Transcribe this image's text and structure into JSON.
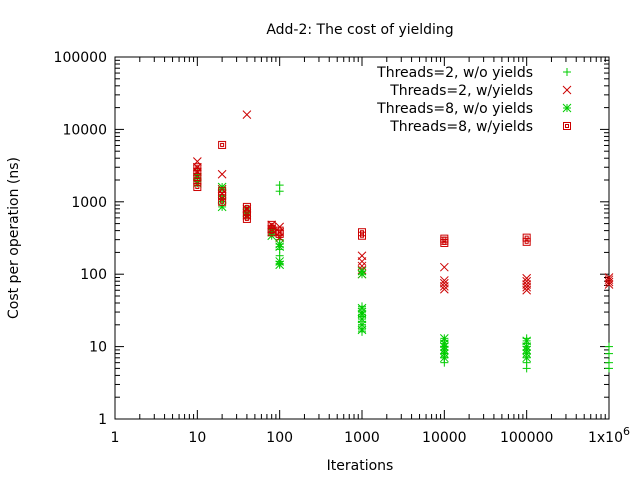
{
  "chart_data": {
    "type": "scatter",
    "title": "Add-2: The cost of yielding",
    "xlabel": "Iterations",
    "ylabel": "Cost per operation (ns)",
    "xscale": "log",
    "yscale": "log",
    "xlim": [
      1,
      1000000
    ],
    "ylim": [
      1,
      100000
    ],
    "xticks": [
      {
        "value": 1,
        "label": "1"
      },
      {
        "value": 10,
        "label": "10"
      },
      {
        "value": 100,
        "label": "100"
      },
      {
        "value": 1000,
        "label": "1000"
      },
      {
        "value": 10000,
        "label": "10000"
      },
      {
        "value": 100000,
        "label": "100000"
      },
      {
        "value": 1000000,
        "label": "1x10",
        "exponent": "6"
      }
    ],
    "yticks": [
      {
        "value": 1,
        "label": "1"
      },
      {
        "value": 10,
        "label": "10"
      },
      {
        "value": 100,
        "label": "100"
      },
      {
        "value": 1000,
        "label": "1000"
      },
      {
        "value": 10000,
        "label": "10000"
      },
      {
        "value": 100000,
        "label": "100000"
      }
    ],
    "grid": false,
    "legend_position": "top-right",
    "series": [
      {
        "name": "Threads=2, w/o yields",
        "marker": "plus",
        "color": "#00cc00",
        "points": [
          [
            10,
            2700
          ],
          [
            10,
            2400
          ],
          [
            10,
            2100
          ],
          [
            10,
            1900
          ],
          [
            20,
            1500
          ],
          [
            20,
            1200
          ],
          [
            20,
            1000
          ],
          [
            40,
            800
          ],
          [
            40,
            650
          ],
          [
            80,
            420
          ],
          [
            80,
            380
          ],
          [
            100,
            1700
          ],
          [
            100,
            1400
          ],
          [
            100,
            300
          ],
          [
            100,
            220
          ],
          [
            100,
            180
          ],
          [
            100,
            140
          ],
          [
            1000,
            36
          ],
          [
            1000,
            30
          ],
          [
            1000,
            26
          ],
          [
            1000,
            22
          ],
          [
            1000,
            20
          ],
          [
            1000,
            18
          ],
          [
            1000,
            16
          ],
          [
            10000,
            12
          ],
          [
            10000,
            10
          ],
          [
            10000,
            9
          ],
          [
            10000,
            8
          ],
          [
            10000,
            7
          ],
          [
            10000,
            6
          ],
          [
            100000,
            13
          ],
          [
            100000,
            11
          ],
          [
            100000,
            9
          ],
          [
            100000,
            6
          ],
          [
            100000,
            5
          ],
          [
            1000000,
            10
          ],
          [
            1000000,
            8
          ],
          [
            1000000,
            6
          ],
          [
            1000000,
            5
          ]
        ]
      },
      {
        "name": "Threads=2, w/yields",
        "marker": "cross",
        "color": "#cc0000",
        "points": [
          [
            10,
            3600
          ],
          [
            10,
            3000
          ],
          [
            10,
            2600
          ],
          [
            20,
            2400
          ],
          [
            20,
            1500
          ],
          [
            20,
            1300
          ],
          [
            40,
            16000
          ],
          [
            40,
            800
          ],
          [
            40,
            650
          ],
          [
            80,
            480
          ],
          [
            80,
            420
          ],
          [
            100,
            450
          ],
          [
            100,
            380
          ],
          [
            100,
            320
          ],
          [
            1000,
            180
          ],
          [
            1000,
            150
          ],
          [
            1000,
            130
          ],
          [
            1000,
            115
          ],
          [
            1000,
            100
          ],
          [
            10000,
            125
          ],
          [
            10000,
            82
          ],
          [
            10000,
            75
          ],
          [
            10000,
            68
          ],
          [
            10000,
            62
          ],
          [
            100000,
            88
          ],
          [
            100000,
            80
          ],
          [
            100000,
            72
          ],
          [
            100000,
            66
          ],
          [
            100000,
            60
          ],
          [
            1000000,
            90
          ],
          [
            1000000,
            84
          ],
          [
            1000000,
            78
          ],
          [
            1000000,
            72
          ]
        ]
      },
      {
        "name": "Threads=8, w/o yields",
        "marker": "star",
        "color": "#00cc00",
        "points": [
          [
            10,
            2200
          ],
          [
            10,
            1800
          ],
          [
            20,
            1600
          ],
          [
            20,
            1100
          ],
          [
            20,
            850
          ],
          [
            40,
            700
          ],
          [
            80,
            380
          ],
          [
            80,
            340
          ],
          [
            100,
            260
          ],
          [
            100,
            240
          ],
          [
            100,
            150
          ],
          [
            100,
            135
          ],
          [
            1000,
            110
          ],
          [
            1000,
            100
          ],
          [
            1000,
            34
          ],
          [
            1000,
            30
          ],
          [
            1000,
            28
          ],
          [
            1000,
            24
          ],
          [
            1000,
            20
          ],
          [
            1000,
            17
          ],
          [
            10000,
            13
          ],
          [
            10000,
            11
          ],
          [
            10000,
            10
          ],
          [
            10000,
            9
          ],
          [
            10000,
            8
          ],
          [
            10000,
            7
          ],
          [
            100000,
            12
          ],
          [
            100000,
            10
          ],
          [
            100000,
            9
          ],
          [
            100000,
            8
          ],
          [
            100000,
            7
          ]
        ]
      },
      {
        "name": "Threads=8, w/yields",
        "marker": "square",
        "color": "#cc0000",
        "points": [
          [
            10,
            3000
          ],
          [
            10,
            2600
          ],
          [
            10,
            2200
          ],
          [
            10,
            1900
          ],
          [
            10,
            1600
          ],
          [
            20,
            6100
          ],
          [
            20,
            1400
          ],
          [
            20,
            1200
          ],
          [
            20,
            1000
          ],
          [
            40,
            850
          ],
          [
            40,
            750
          ],
          [
            40,
            650
          ],
          [
            40,
            580
          ],
          [
            80,
            480
          ],
          [
            80,
            420
          ],
          [
            80,
            380
          ],
          [
            100,
            400
          ],
          [
            100,
            360
          ],
          [
            1000,
            380
          ],
          [
            1000,
            340
          ],
          [
            10000,
            310
          ],
          [
            10000,
            290
          ],
          [
            10000,
            270
          ],
          [
            100000,
            320
          ],
          [
            100000,
            280
          ]
        ]
      }
    ]
  }
}
